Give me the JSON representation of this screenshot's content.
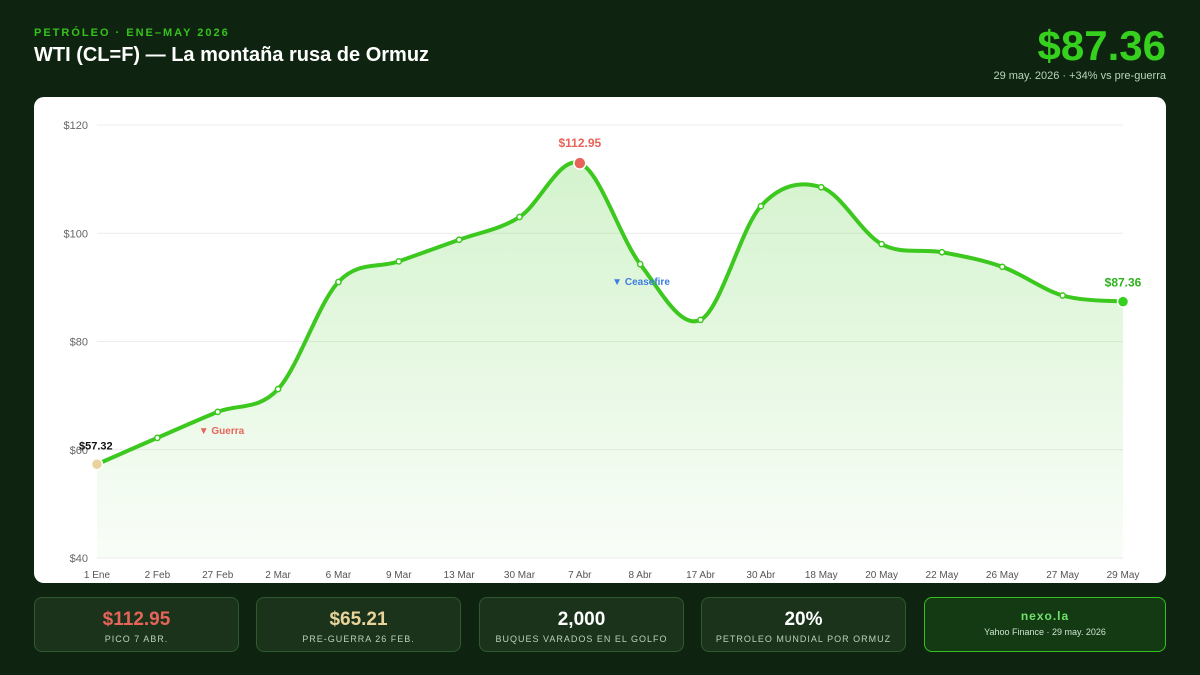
{
  "header": {
    "kicker": "PETRÓLEO · ENE–MAY 2026",
    "title": "WTI (CL=F) — La montaña rusa de Ormuz",
    "price": "$87.36",
    "subtitle": "29 may. 2026 · +34% vs pre-guerra"
  },
  "colors": {
    "background": "#0f2410",
    "accent": "#35d11e",
    "line": "#3cc81e",
    "peak": "#e8635a",
    "start": "#e8d39a",
    "ceasefire": "#3b7de0"
  },
  "chart_data": {
    "type": "area",
    "categories": [
      "1 Ene",
      "2 Feb",
      "27 Feb",
      "2 Mar",
      "6 Mar",
      "9 Mar",
      "13 Mar",
      "30 Mar",
      "7 Abr",
      "8 Abr",
      "17 Abr",
      "30 Abr",
      "18 May",
      "20 May",
      "22 May",
      "26 May",
      "27 May",
      "29 May"
    ],
    "values": [
      57.32,
      62.2,
      67.0,
      71.2,
      91.0,
      94.8,
      98.8,
      103.0,
      112.95,
      94.3,
      84.0,
      105.0,
      108.5,
      98.0,
      96.5,
      93.8,
      88.5,
      87.36
    ],
    "ylim": [
      40,
      120
    ],
    "yticks": [
      "$40",
      "$60",
      "$80",
      "$100",
      "$120"
    ],
    "grid": true,
    "point_labels": {
      "start": "$57.32",
      "peak": "$112.95",
      "end": "$87.36"
    },
    "annotations": [
      {
        "text": "▼ Guerra",
        "x_index": 2
      },
      {
        "text": "▼ Ceasefire",
        "x_index": 9
      }
    ]
  },
  "stats": [
    {
      "value": "$112.95",
      "label": "PICO 7 ABR.",
      "color": "#e8635a"
    },
    {
      "value": "$65.21",
      "label": "PRE-GUERRA 26 FEB.",
      "color": "#e8d39a"
    },
    {
      "value": "2,000",
      "label": "BUQUES VARADOS EN EL GOLFO",
      "color": "#ffffff"
    },
    {
      "value": "20%",
      "label": "PETROLEO MUNDIAL POR ORMUZ",
      "color": "#ffffff"
    }
  ],
  "brand": {
    "name": "nexo.la",
    "source": "Yahoo Finance · 29 may. 2026"
  }
}
